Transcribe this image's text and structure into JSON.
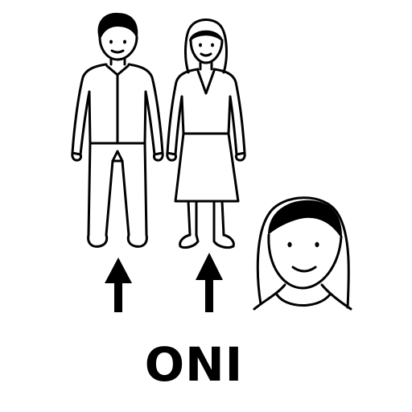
{
  "caption": {
    "word": "ONI"
  },
  "colors": {
    "ink": "#000000",
    "paper": "#ffffff"
  },
  "figures": [
    {
      "name": "man",
      "icon": "man-figure-icon"
    },
    {
      "name": "woman",
      "icon": "woman-figure-icon"
    },
    {
      "name": "girl-portrait",
      "icon": "girl-face-icon"
    }
  ],
  "pointers": [
    {
      "icon": "arrow-up-icon"
    },
    {
      "icon": "arrow-up-icon"
    }
  ]
}
